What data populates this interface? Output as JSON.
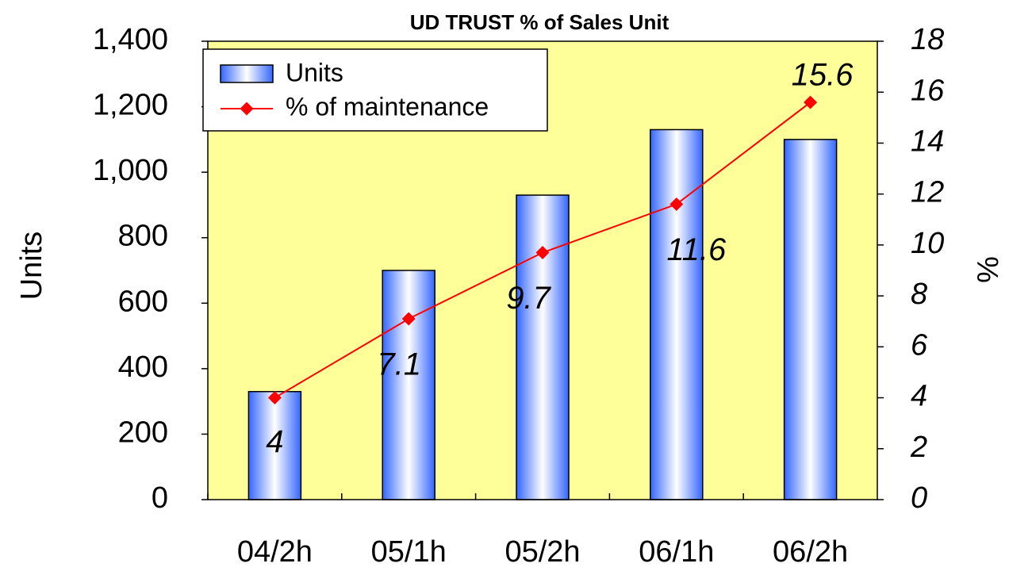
{
  "chart_data": {
    "type": "bar",
    "title": "UD TRUST % of Sales Unit",
    "categories": [
      "04/2h",
      "05/1h",
      "05/2h",
      "06/1h",
      "06/2h"
    ],
    "series": [
      {
        "name": "Units",
        "color": "#3366ff",
        "values": [
          330,
          700,
          930,
          1130,
          1100
        ]
      },
      {
        "name": "% of maintenance",
        "color": "#ff0000",
        "axis": "y2",
        "type": "line",
        "values": [
          4,
          7.1,
          9.7,
          11.6,
          15.6
        ]
      }
    ],
    "y_label": "Units",
    "y2_label": "%",
    "ylim": [
      0,
      1400
    ],
    "yticks": [
      0,
      200,
      400,
      600,
      800,
      {
        "value": 1000,
        "label": "1,000"
      },
      {
        "value": 1200,
        "label": "1,200"
      },
      {
        "value": 1400,
        "label": "1,400"
      }
    ],
    "y2lim": [
      0,
      18
    ],
    "y2ticks": [
      0,
      2,
      4,
      6,
      8,
      10,
      12,
      14,
      16,
      18
    ],
    "background": "#ffff99",
    "legend": "upper left"
  }
}
